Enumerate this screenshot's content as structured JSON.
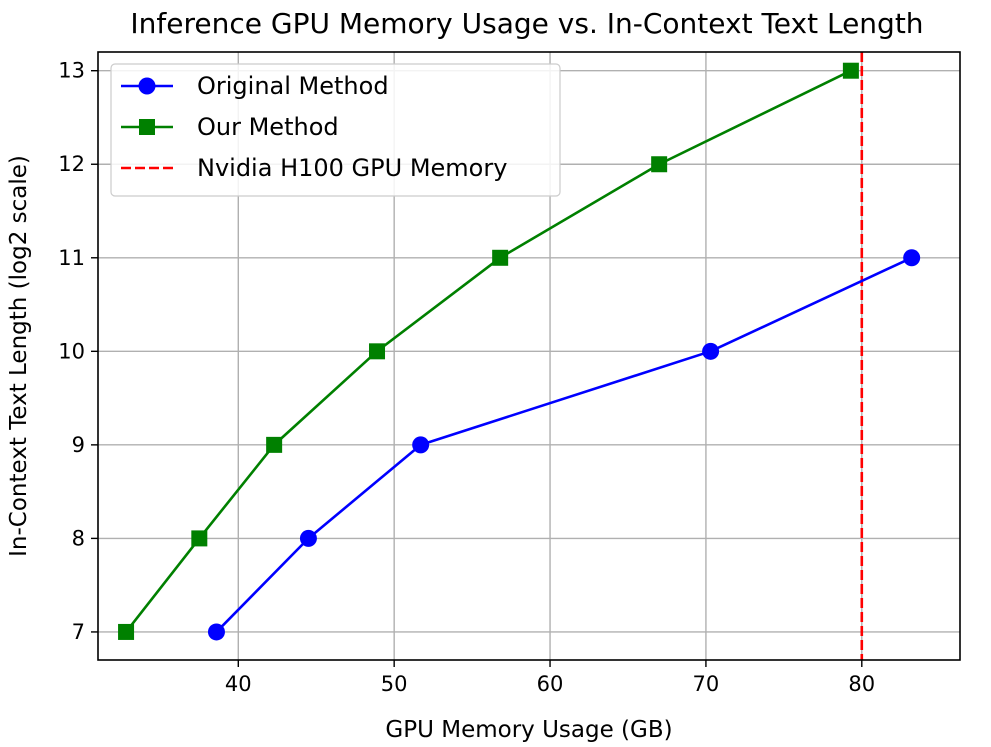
{
  "chart_data": {
    "type": "line",
    "title": "Inference GPU Memory Usage vs. In-Context Text Length",
    "xlabel": "GPU Memory Usage (GB)",
    "ylabel": "In-Context Text Length (log2 scale)",
    "xlim": [
      31,
      86.3
    ],
    "ylim": [
      6.7,
      13.2
    ],
    "xticks": [
      40,
      50,
      60,
      70,
      80
    ],
    "yticks": [
      7,
      8,
      9,
      10,
      11,
      12,
      13
    ],
    "xtick_labels": [
      "40",
      "50",
      "60",
      "70",
      "80"
    ],
    "ytick_labels": [
      "7",
      "8",
      "9",
      "10",
      "11",
      "12",
      "13"
    ],
    "grid": true,
    "legend_position": "top-left",
    "series": [
      {
        "name": "Original Method",
        "color": "#0000ff",
        "marker": "circle",
        "x": [
          38.6,
          44.5,
          51.7,
          70.3,
          83.2
        ],
        "y": [
          7,
          8,
          9,
          10,
          11
        ]
      },
      {
        "name": "Our Method",
        "color": "#008000",
        "marker": "square",
        "x": [
          32.8,
          37.5,
          42.3,
          48.9,
          56.8,
          67.0,
          79.3
        ],
        "y": [
          7,
          8,
          9,
          10,
          11,
          12,
          13
        ]
      }
    ],
    "reference_lines": [
      {
        "name": "Nvidia H100 GPU Memory",
        "orientation": "vertical",
        "x": 80,
        "color": "#ff0000",
        "style": "dashed"
      }
    ]
  }
}
